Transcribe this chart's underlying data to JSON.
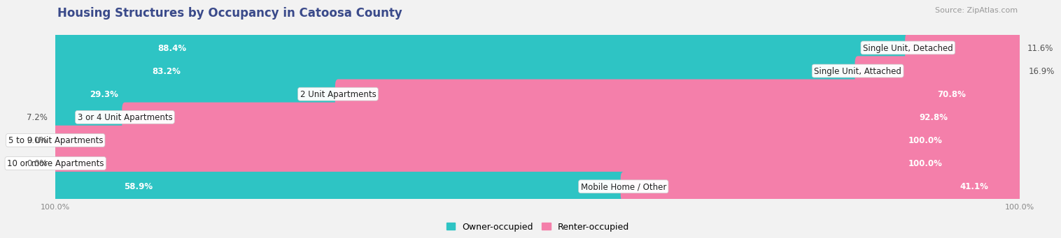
{
  "title": "Housing Structures by Occupancy in Catoosa County",
  "source": "Source: ZipAtlas.com",
  "categories": [
    "Single Unit, Detached",
    "Single Unit, Attached",
    "2 Unit Apartments",
    "3 or 4 Unit Apartments",
    "5 to 9 Unit Apartments",
    "10 or more Apartments",
    "Mobile Home / Other"
  ],
  "owner_pct": [
    88.4,
    83.2,
    29.3,
    7.2,
    0.0,
    0.0,
    58.9
  ],
  "renter_pct": [
    11.6,
    16.9,
    70.8,
    92.8,
    100.0,
    100.0,
    41.1
  ],
  "owner_color": "#2ec4c4",
  "renter_color": "#f47faa",
  "owner_label": "Owner-occupied",
  "renter_label": "Renter-occupied",
  "bg_color": "#f2f2f2",
  "row_colors": [
    "#ffffff",
    "#ebebeb"
  ],
  "title_color": "#3a4a8a",
  "source_color": "#999999",
  "label_fontsize": 8.5,
  "title_fontsize": 12,
  "source_fontsize": 8,
  "axis_label_fontsize": 8,
  "legend_fontsize": 9
}
